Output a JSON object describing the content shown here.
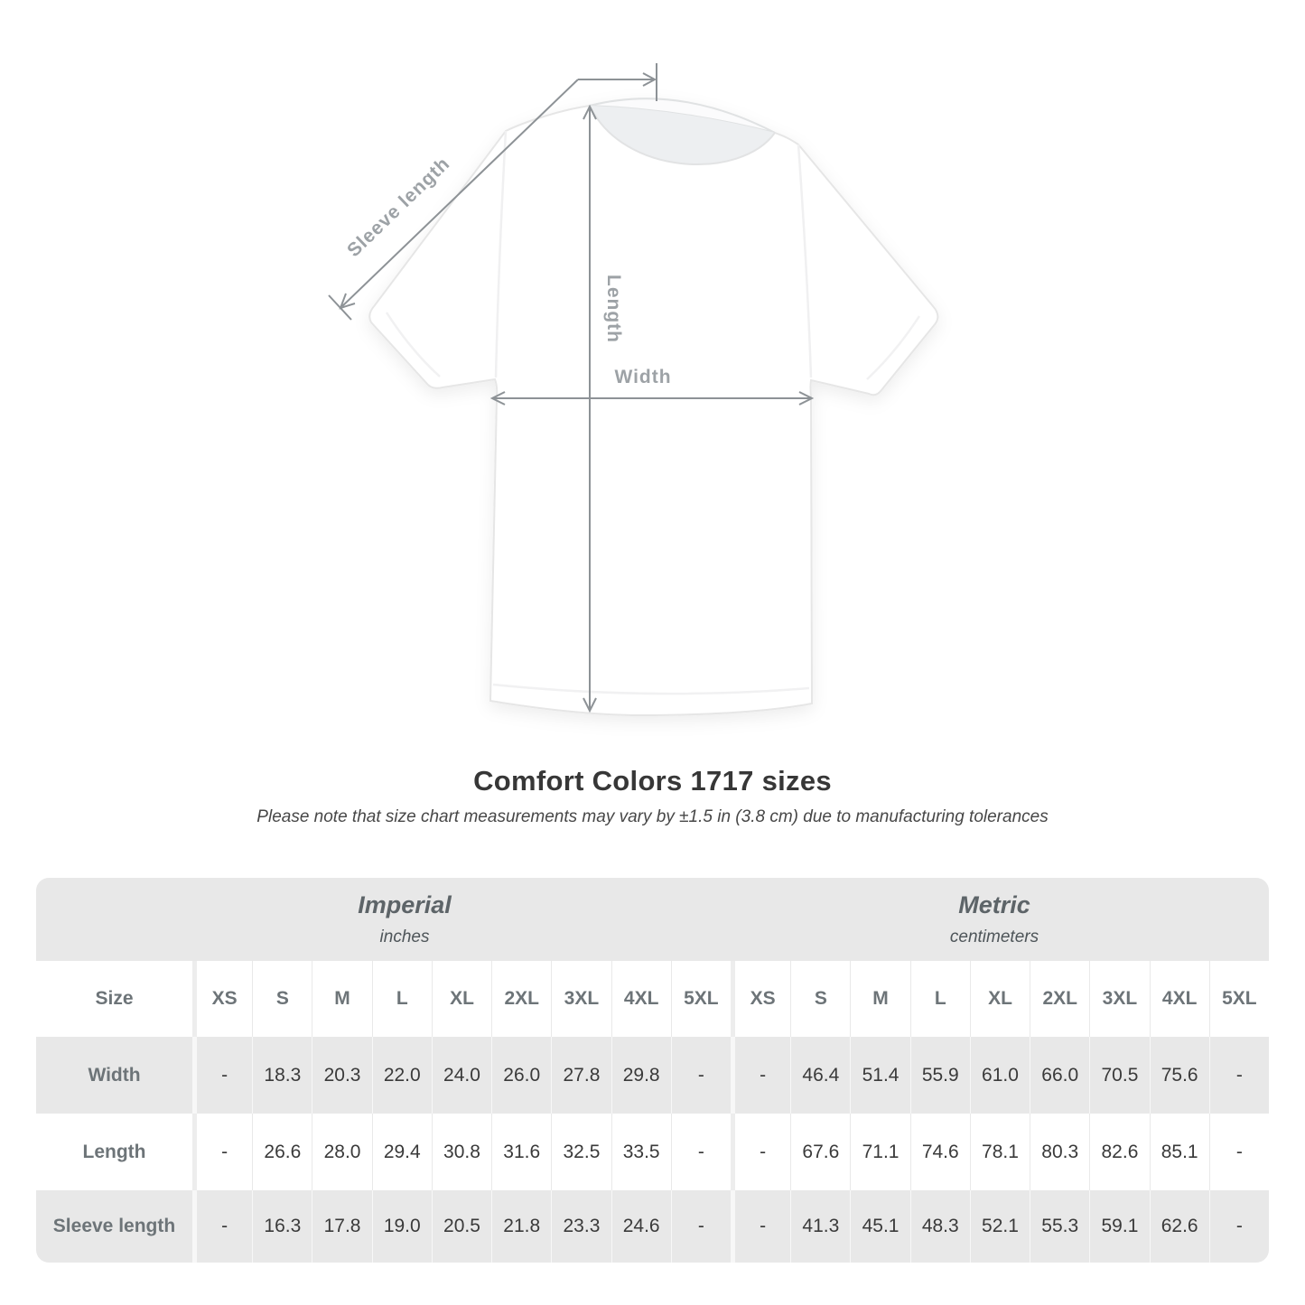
{
  "diagram": {
    "labels": {
      "sleeve_length": "Sleeve length",
      "length": "Length",
      "width": "Width"
    },
    "colors": {
      "line": "#8d9296",
      "label": "#9da2a6"
    }
  },
  "heading": {
    "title": "Comfort Colors 1717 sizes",
    "subtitle": "Please note that size chart measurements may vary by ±1.5 in (3.8 cm) due to manufacturing tolerances"
  },
  "table": {
    "size_label": "Size",
    "sizes": [
      "XS",
      "S",
      "M",
      "L",
      "XL",
      "2XL",
      "3XL",
      "4XL",
      "5XL"
    ],
    "unit_groups": [
      {
        "name": "Imperial",
        "unit": "inches"
      },
      {
        "name": "Metric",
        "unit": "centimeters"
      }
    ],
    "rows": [
      {
        "label": "Width",
        "imperial": [
          "-",
          "18.3",
          "20.3",
          "22.0",
          "24.0",
          "26.0",
          "27.8",
          "29.8",
          "-"
        ],
        "metric": [
          "-",
          "46.4",
          "51.4",
          "55.9",
          "61.0",
          "66.0",
          "70.5",
          "75.6",
          "-"
        ]
      },
      {
        "label": "Length",
        "imperial": [
          "-",
          "26.6",
          "28.0",
          "29.4",
          "30.8",
          "31.6",
          "32.5",
          "33.5",
          "-"
        ],
        "metric": [
          "-",
          "67.6",
          "71.1",
          "74.6",
          "78.1",
          "80.3",
          "82.6",
          "85.1",
          "-"
        ]
      },
      {
        "label": "Sleeve length",
        "imperial": [
          "-",
          "16.3",
          "17.8",
          "19.0",
          "20.5",
          "21.8",
          "23.3",
          "24.6",
          "-"
        ],
        "metric": [
          "-",
          "41.3",
          "45.1",
          "48.3",
          "52.1",
          "55.3",
          "59.1",
          "62.6",
          "-"
        ]
      }
    ],
    "colors": {
      "band_bg": "#e8e8e8",
      "row_alt_bg": "#e8e8e8",
      "label_color": "#6d7478",
      "value_color": "#3a3a3a"
    }
  }
}
